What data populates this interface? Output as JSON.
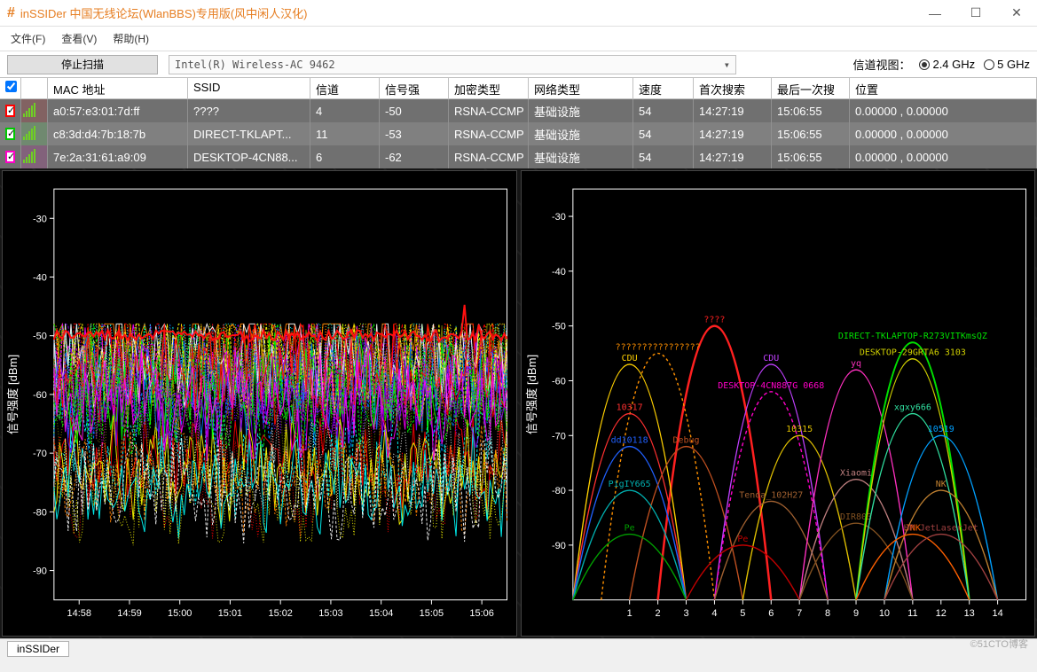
{
  "window": {
    "title": "inSSIDer 中国无线论坛(WlanBBS)专用版(风中闲人汉化)",
    "min": "—",
    "max": "☐",
    "close": "✕"
  },
  "menu": {
    "file": "文件(F)",
    "view": "查看(V)",
    "help": "帮助(H)"
  },
  "toolbar": {
    "scan": "停止扫描",
    "adapter": "Intel(R) Wireless-AC 9462",
    "channel_view_label": "信道视图：",
    "band24": "2.4 GHz",
    "band5": "5 GHz",
    "selected_band": "2.4"
  },
  "table": {
    "headers": {
      "mac": "MAC 地址",
      "ssid": "SSID",
      "channel": "信道",
      "rssi": "信号强",
      "enc": "加密类型",
      "nettype": "网络类型",
      "speed": "速度",
      "first": "首次搜索",
      "last": "最后一次搜",
      "loc": "位置"
    },
    "rows": [
      {
        "color": "#ff0000",
        "mac": "a0:57:e3:01:7d:ff",
        "ssid": "????",
        "channel": "4",
        "rssi": "-50",
        "enc": "RSNA-CCMP",
        "nettype": "基础设施",
        "speed": "54",
        "first": "14:27:19",
        "last": "15:06:55",
        "loc": "0.00000 , 0.00000",
        "shade": "dark"
      },
      {
        "color": "#00c800",
        "mac": "c8:3d:d4:7b:18:7b",
        "ssid": "DIRECT-TKLAPT...",
        "channel": "11",
        "rssi": "-53",
        "enc": "RSNA-CCMP",
        "nettype": "基础设施",
        "speed": "54",
        "first": "14:27:19",
        "last": "15:06:55",
        "loc": "0.00000 , 0.00000",
        "shade": "mid"
      },
      {
        "color": "#ff00c8",
        "mac": "7e:2a:31:61:a9:09",
        "ssid": "DESKTOP-4CN88...",
        "channel": "6",
        "rssi": "-62",
        "enc": "RSNA-CCMP",
        "nettype": "基础设施",
        "speed": "54",
        "first": "14:27:19",
        "last": "15:06:55",
        "loc": "0.00000 , 0.00000",
        "shade": "dark"
      }
    ]
  },
  "time_chart": {
    "ylabel": "信号强度 [dBm]",
    "ylim": [
      -95,
      -25
    ],
    "yticks": [
      -30,
      -40,
      -50,
      -60,
      -70,
      -80,
      -90
    ],
    "xticks": [
      "14:58",
      "14:59",
      "15:00",
      "15:01",
      "15:02",
      "15:03",
      "15:04",
      "15:05",
      "15:06"
    ],
    "background": "#000000",
    "trace_colors": [
      "#ff0000",
      "#00ff00",
      "#ffff00",
      "#ff00ff",
      "#00ffff",
      "#0080ff",
      "#ff8000",
      "#8000ff",
      "#ffffff",
      "#808000"
    ],
    "density_band": {
      "top_dbm": -50,
      "bottom_dbm": -92
    }
  },
  "channel_chart": {
    "ylabel": "信号强度 [dBm]",
    "ylim": [
      -100,
      -25
    ],
    "yticks": [
      -30,
      -40,
      -50,
      -60,
      -70,
      -80,
      -90
    ],
    "xticks": [
      1,
      2,
      3,
      4,
      5,
      6,
      7,
      8,
      9,
      10,
      11,
      12,
      13,
      14
    ],
    "background": "#000000",
    "networks": [
      {
        "ssid": "????",
        "channel": 4,
        "rssi": -50,
        "color": "#ff2020",
        "width": 2.5
      },
      {
        "ssid": "????????????????",
        "channel": 2,
        "rssi": -55,
        "color": "#ff9000",
        "dash": "3,3"
      },
      {
        "ssid": "CDU",
        "channel": 1,
        "rssi": -57,
        "color": "#ffd000"
      },
      {
        "ssid": "10317",
        "channel": 1,
        "rssi": -66,
        "color": "#ff3030"
      },
      {
        "ssid": "dd10118",
        "channel": 1,
        "rssi": -72,
        "color": "#2060ff"
      },
      {
        "ssid": "Debug",
        "channel": 3,
        "rssi": -72,
        "color": "#c05020"
      },
      {
        "ssid": "PigIY665",
        "channel": 1,
        "rssi": -80,
        "color": "#00b0b0"
      },
      {
        "ssid": "Pe",
        "channel": 1,
        "rssi": -88,
        "color": "#00a000"
      },
      {
        "ssid": "CDU",
        "channel": 6,
        "rssi": -57,
        "color": "#c040ff"
      },
      {
        "ssid": "DESKTOP-4CN887G 0668",
        "channel": 6,
        "rssi": -62,
        "color": "#ff00c8",
        "dash": "4,3"
      },
      {
        "ssid": "10315",
        "channel": 7,
        "rssi": -70,
        "color": "#e0c000"
      },
      {
        "ssid": "Tenda_102H27",
        "channel": 6,
        "rssi": -82,
        "color": "#a06030"
      },
      {
        "ssid": "Pe",
        "channel": 5,
        "rssi": -90,
        "color": "#c00000"
      },
      {
        "ssid": "yq",
        "channel": 9,
        "rssi": -58,
        "color": "#ff30c0"
      },
      {
        "ssid": "Xiaomi",
        "channel": 9,
        "rssi": -78,
        "color": "#c08080"
      },
      {
        "ssid": "DIR803",
        "channel": 9,
        "rssi": -86,
        "color": "#805020"
      },
      {
        "ssid": "DIRECT-TKLAPTOP-R273VITKmsQZ",
        "channel": 11,
        "rssi": -53,
        "color": "#00e000",
        "width": 2
      },
      {
        "ssid": "DESKTOP-29GRTA6 3103",
        "channel": 11,
        "rssi": -56,
        "color": "#d0d000"
      },
      {
        "ssid": "xgxy666",
        "channel": 11,
        "rssi": -66,
        "color": "#30e0a0"
      },
      {
        "ssid": "10519",
        "channel": 12,
        "rssi": -70,
        "color": "#00a0ff"
      },
      {
        "ssid": "NK",
        "channel": 12,
        "rssi": -80,
        "color": "#c08030"
      },
      {
        "ssid": "JNK",
        "channel": 11,
        "rssi": -88,
        "color": "#ff6000"
      },
      {
        "ssid": "HP JetLaserJet",
        "channel": 12,
        "rssi": -88,
        "color": "#a04040"
      }
    ]
  },
  "status": {
    "tab": "inSSIDer"
  },
  "watermark": "©51CTO博客"
}
